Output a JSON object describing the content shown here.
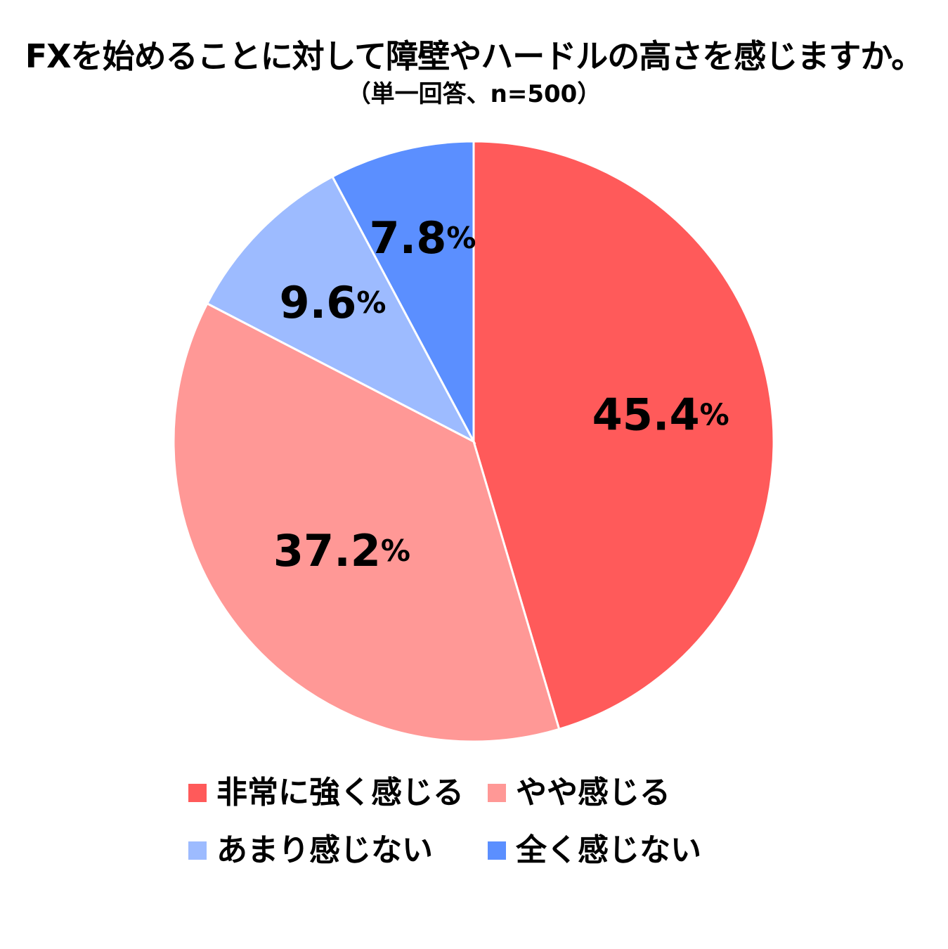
{
  "chart_data": {
    "type": "pie",
    "title": "FXを始めることに対して障壁やハードルの高さを感じますか。",
    "subtitle": "（単一回答、n=500）",
    "slices": [
      {
        "label": "非常に強く感じる",
        "value": 45.4,
        "value_text": "45.4",
        "color": "#ff5a5a"
      },
      {
        "label": "やや感じる",
        "value": 37.2,
        "value_text": "37.2",
        "color": "#ff9896"
      },
      {
        "label": "あまり感じない",
        "value": 9.6,
        "value_text": "9.6",
        "color": "#9dbbff"
      },
      {
        "label": "全く感じない",
        "value": 7.8,
        "value_text": "7.8",
        "color": "#5b8fff"
      }
    ],
    "value_suffix": "%",
    "start": "12 o'clock",
    "direction": "clockwise",
    "legend_position": "bottom"
  }
}
